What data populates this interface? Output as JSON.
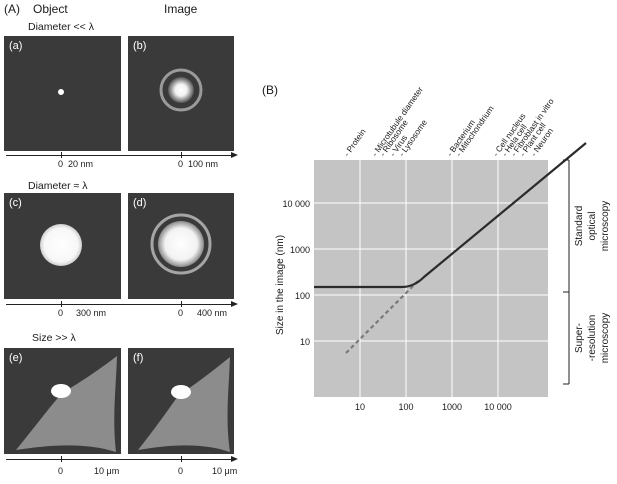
{
  "panel_A": {
    "label": "(A)",
    "columns": {
      "object": "Object",
      "image": "Image"
    },
    "rows": [
      {
        "header": "Diameter << λ",
        "object": {
          "letter": "(a)",
          "axis": [
            "0",
            "20 nm"
          ]
        },
        "image": {
          "letter": "(b)",
          "axis": [
            "0",
            "100 nm"
          ]
        }
      },
      {
        "header": "Diameter ≈ λ",
        "object": {
          "letter": "(c)",
          "axis": [
            "0",
            "300 nm"
          ]
        },
        "image": {
          "letter": "(d)",
          "axis": [
            "0",
            "400 nm"
          ]
        }
      },
      {
        "header": "Size >> λ",
        "object": {
          "letter": "(e)",
          "axis": [
            "0",
            "10 μm"
          ]
        },
        "image": {
          "letter": "(f)",
          "axis": [
            "0",
            "10 μm"
          ]
        }
      }
    ]
  },
  "panel_B": {
    "label": "(B)",
    "ylabel": "Size in the image (nm)",
    "y_ticks": [
      "10 000",
      "1000",
      "100",
      "10"
    ],
    "x_ticks": [
      "10",
      "100",
      "1000",
      "10 000"
    ],
    "objects": [
      "- Protein",
      "- Microtubule diameter",
      "- Ribosome",
      "- Virus",
      "- Lysosome",
      "- Bacterium",
      "- Mitochondrium",
      "- Cell nucleus",
      "- Hela cell",
      "- Fibroblast in vitro",
      "- Plant cell",
      "- Neuron"
    ],
    "brackets": {
      "standard": [
        "Standard",
        "optical",
        "microscopy"
      ],
      "super": [
        "Super-",
        "-resolution",
        "microscopy"
      ]
    },
    "colors": {
      "plot_bg": "#c4c4c4",
      "grid": "#ffffff",
      "line": "#2b2b2b",
      "dashed": "#7a7a7a"
    }
  }
}
